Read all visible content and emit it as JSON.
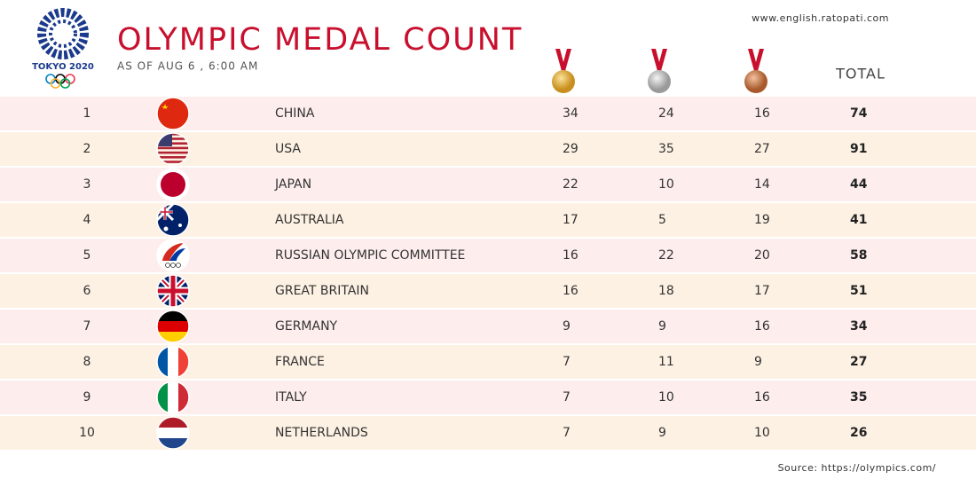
{
  "header": {
    "logo_text": "TOKYO 2020",
    "title": "OLYMPIC MEDAL COUNT",
    "subtitle": "AS OF AUG 6 , 6:00 AM",
    "website": "www.english.ratopati.com"
  },
  "table": {
    "total_header": "TOTAL",
    "rows": [
      [
        "1",
        "CHINA",
        "34",
        "24",
        "16",
        "74"
      ],
      [
        "2",
        "USA",
        "29",
        "35",
        "27",
        "91"
      ],
      [
        "3",
        "JAPAN",
        "22",
        "10",
        "14",
        "44"
      ],
      [
        "4",
        "AUSTRALIA",
        "17",
        "5",
        "19",
        "41"
      ],
      [
        "5",
        "RUSSIAN OLYMPIC COMMITTEE",
        "16",
        "22",
        "20",
        "58"
      ],
      [
        "6",
        "GREAT BRITAIN",
        "16",
        "18",
        "17",
        "51"
      ],
      [
        "7",
        "GERMANY",
        "9",
        "9",
        "16",
        "34"
      ],
      [
        "8",
        "FRANCE",
        "7",
        "11",
        "9",
        "27"
      ],
      [
        "9",
        "ITALY",
        "7",
        "10",
        "16",
        "35"
      ],
      [
        "10",
        "NETHERLANDS",
        "7",
        "9",
        "10",
        "26"
      ]
    ]
  },
  "footer": {
    "source": "Source: https://olympics.com/"
  }
}
